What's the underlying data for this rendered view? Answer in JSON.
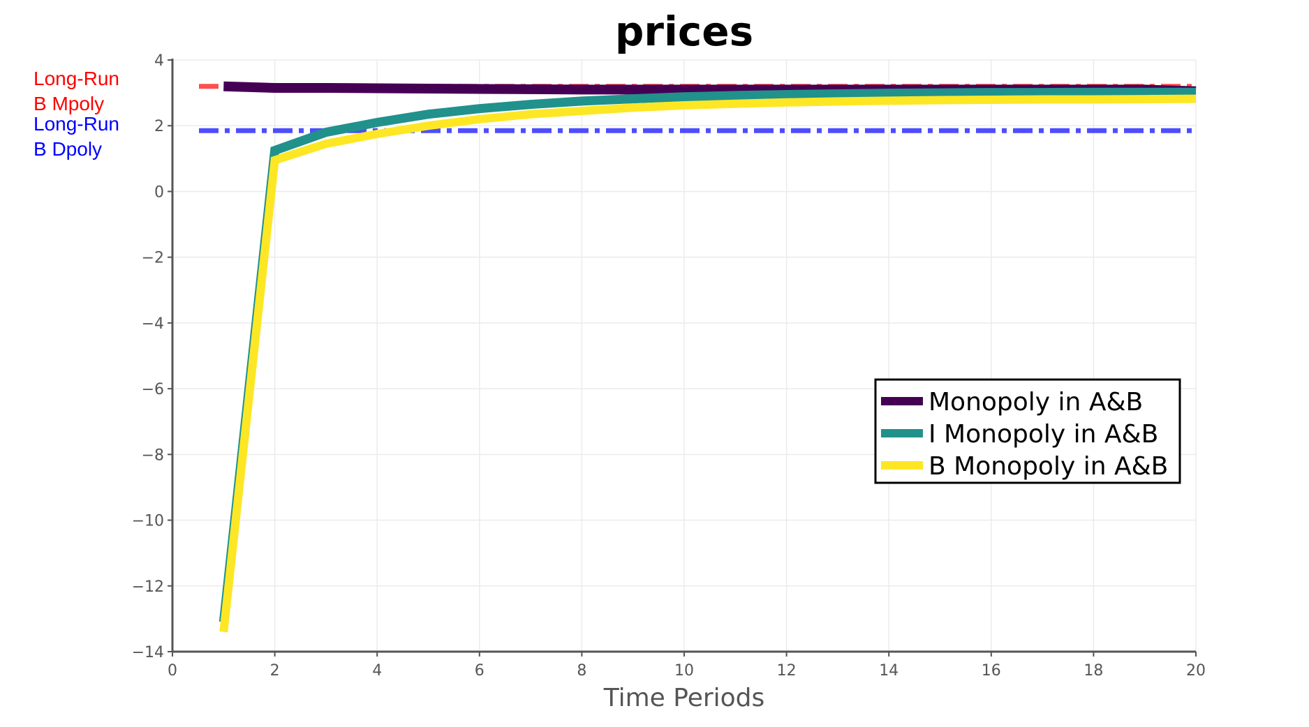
{
  "chart_data": {
    "type": "line",
    "title": "prices",
    "xlabel": "Time Periods",
    "ylabel": "",
    "xlim": [
      0,
      20
    ],
    "ylim": [
      -14,
      4
    ],
    "x_ticks": [
      "0",
      "2",
      "4",
      "6",
      "8",
      "10",
      "12",
      "14",
      "16",
      "18",
      "20"
    ],
    "y_ticks": [
      "4",
      "2",
      "0",
      "−2",
      "−4",
      "−6",
      "−8",
      "−10",
      "−12",
      "−14"
    ],
    "grid": true,
    "legend_position": "lower-right",
    "x": [
      1,
      2,
      3,
      4,
      5,
      6,
      7,
      8,
      9,
      10,
      11,
      12,
      13,
      14,
      15,
      16,
      17,
      18,
      19,
      20
    ],
    "series": [
      {
        "name": "Monopoly in A&B",
        "color": "#440154",
        "values": [
          3.2,
          3.15,
          3.15,
          3.14,
          3.13,
          3.12,
          3.11,
          3.1,
          3.1,
          3.1,
          3.1,
          3.1,
          3.1,
          3.1,
          3.1,
          3.1,
          3.1,
          3.1,
          3.1,
          3.05
        ]
      },
      {
        "name": "I Monopoly in A&B",
        "color": "#21918c",
        "values": [
          -13.1,
          1.25,
          1.8,
          2.1,
          2.35,
          2.52,
          2.65,
          2.75,
          2.82,
          2.88,
          2.92,
          2.95,
          2.97,
          2.99,
          3.0,
          3.01,
          3.01,
          3.02,
          3.02,
          3.02
        ]
      },
      {
        "name": "B Monopoly in A&B",
        "color": "#fde725",
        "values": [
          -13.4,
          0.95,
          1.45,
          1.75,
          2.0,
          2.2,
          2.35,
          2.45,
          2.55,
          2.62,
          2.67,
          2.71,
          2.74,
          2.76,
          2.78,
          2.79,
          2.8,
          2.8,
          2.81,
          2.82
        ]
      }
    ],
    "reference_lines": [
      {
        "label_line1": "Long-Run",
        "label_line2": "B Mpoly",
        "y": 3.2,
        "color": "#ff3b3b",
        "label_color": "#ff0000"
      },
      {
        "label_line1": "Long-Run",
        "label_line2": "B Dpoly",
        "y": 1.85,
        "color": "#3a3aff",
        "label_color": "#0000ff"
      }
    ]
  }
}
